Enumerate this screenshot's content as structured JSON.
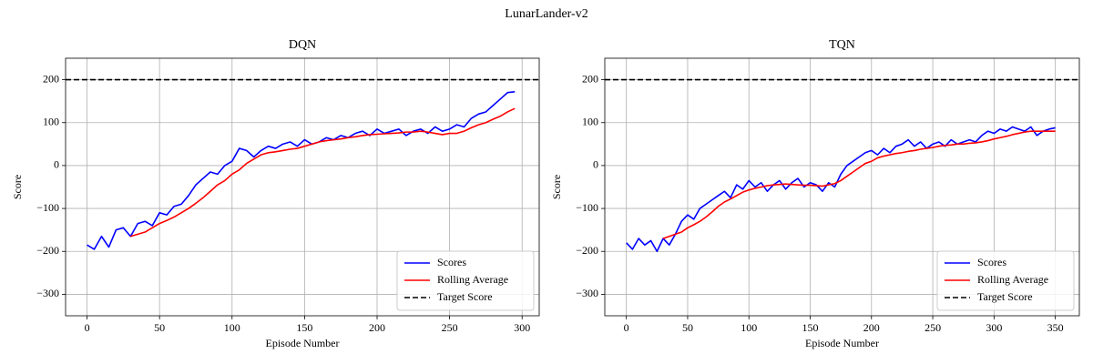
{
  "figure_title": "LunarLander-v2",
  "chart_data": [
    {
      "type": "line",
      "title": "DQN",
      "xlabel": "Episode Number",
      "ylabel": "Score",
      "x": [
        0,
        5,
        10,
        15,
        20,
        25,
        30,
        35,
        40,
        45,
        50,
        55,
        60,
        65,
        70,
        75,
        80,
        85,
        90,
        95,
        100,
        105,
        110,
        115,
        120,
        125,
        130,
        135,
        140,
        145,
        150,
        155,
        160,
        165,
        170,
        175,
        180,
        185,
        190,
        195,
        200,
        205,
        210,
        215,
        220,
        225,
        230,
        235,
        240,
        245,
        250,
        255,
        260,
        265,
        270,
        275,
        280,
        285,
        290,
        295
      ],
      "series": [
        {
          "name": "Scores",
          "color": "#0000ff",
          "values": [
            -185,
            -195,
            -165,
            -190,
            -150,
            -145,
            -165,
            -135,
            -130,
            -140,
            -110,
            -115,
            -95,
            -90,
            -70,
            -45,
            -30,
            -15,
            -20,
            0,
            10,
            40,
            35,
            20,
            35,
            45,
            40,
            50,
            55,
            45,
            60,
            50,
            55,
            65,
            60,
            70,
            65,
            75,
            80,
            70,
            85,
            75,
            80,
            85,
            70,
            80,
            85,
            75,
            90,
            80,
            85,
            95,
            90,
            110,
            120,
            125,
            140,
            155,
            170,
            172
          ]
        },
        {
          "name": "Rolling Average",
          "color": "#ff0000",
          "values": [
            null,
            null,
            null,
            null,
            null,
            null,
            -165,
            -160,
            -155,
            -145,
            -135,
            -128,
            -120,
            -110,
            -100,
            -88,
            -75,
            -60,
            -45,
            -35,
            -20,
            -10,
            5,
            15,
            25,
            30,
            32,
            35,
            38,
            40,
            45,
            50,
            55,
            58,
            60,
            62,
            65,
            67,
            70,
            72,
            73,
            74,
            75,
            76,
            78,
            78,
            80,
            78,
            75,
            72,
            75,
            75,
            80,
            88,
            95,
            100,
            108,
            115,
            125,
            133
          ]
        },
        {
          "name": "Target Score",
          "color": "#000000",
          "dashed": true,
          "value": 200
        }
      ],
      "xlim": [
        -14.8,
        311.8
      ],
      "ylim": [
        -350,
        250
      ],
      "xticks": [
        0,
        50,
        100,
        150,
        200,
        250,
        300
      ],
      "yticks": [
        {
          "value": -300,
          "label": "−300"
        },
        {
          "value": -200,
          "label": "−200"
        },
        {
          "value": -100,
          "label": "−100"
        },
        0,
        100,
        200
      ],
      "grid": true,
      "legend": "lower right"
    },
    {
      "type": "line",
      "title": "TQN",
      "xlabel": "Episode Number",
      "ylabel": "Score",
      "x": [
        0,
        5,
        10,
        15,
        20,
        25,
        30,
        35,
        40,
        45,
        50,
        55,
        60,
        65,
        70,
        75,
        80,
        85,
        90,
        95,
        100,
        105,
        110,
        115,
        120,
        125,
        130,
        135,
        140,
        145,
        150,
        155,
        160,
        165,
        170,
        175,
        180,
        185,
        190,
        195,
        200,
        205,
        210,
        215,
        220,
        225,
        230,
        235,
        240,
        245,
        250,
        255,
        260,
        265,
        270,
        275,
        280,
        285,
        290,
        295,
        300,
        305,
        310,
        315,
        320,
        325,
        330,
        335,
        340,
        345,
        350
      ],
      "series": [
        {
          "name": "Scores",
          "color": "#0000ff",
          "values": [
            -180,
            -195,
            -170,
            -185,
            -175,
            -200,
            -170,
            -185,
            -160,
            -130,
            -115,
            -125,
            -100,
            -90,
            -80,
            -70,
            -60,
            -75,
            -45,
            -55,
            -35,
            -50,
            -40,
            -60,
            -45,
            -35,
            -55,
            -40,
            -30,
            -50,
            -40,
            -45,
            -60,
            -40,
            -50,
            -20,
            0,
            10,
            20,
            30,
            35,
            25,
            40,
            30,
            45,
            50,
            60,
            45,
            55,
            40,
            50,
            55,
            45,
            60,
            50,
            55,
            60,
            55,
            70,
            80,
            75,
            85,
            80,
            90,
            85,
            80,
            90,
            70,
            80,
            85,
            88
          ]
        },
        {
          "name": "Rolling Average",
          "color": "#ff0000",
          "values": [
            null,
            null,
            null,
            null,
            null,
            null,
            -170,
            -165,
            -160,
            -155,
            -145,
            -138,
            -130,
            -120,
            -108,
            -95,
            -85,
            -78,
            -70,
            -62,
            -57,
            -53,
            -50,
            -47,
            -45,
            -44,
            -43,
            -44,
            -45,
            -46,
            -46,
            -47,
            -48,
            -45,
            -42,
            -35,
            -25,
            -15,
            -5,
            5,
            10,
            18,
            22,
            25,
            28,
            30,
            33,
            35,
            38,
            40,
            42,
            45,
            47,
            48,
            50,
            50,
            52,
            53,
            55,
            58,
            62,
            65,
            68,
            72,
            75,
            78,
            80,
            80,
            80,
            80,
            80
          ]
        },
        {
          "name": "Target Score",
          "color": "#000000",
          "dashed": true,
          "value": 200
        }
      ],
      "xlim": [
        -17.6,
        369.6
      ],
      "ylim": [
        -350,
        250
      ],
      "xticks": [
        0,
        50,
        100,
        150,
        200,
        250,
        300,
        350
      ],
      "yticks": [
        {
          "value": -300,
          "label": "−300"
        },
        {
          "value": -200,
          "label": "−200"
        },
        {
          "value": -100,
          "label": "−100"
        },
        0,
        100,
        200
      ],
      "grid": true,
      "legend": "lower right"
    }
  ]
}
